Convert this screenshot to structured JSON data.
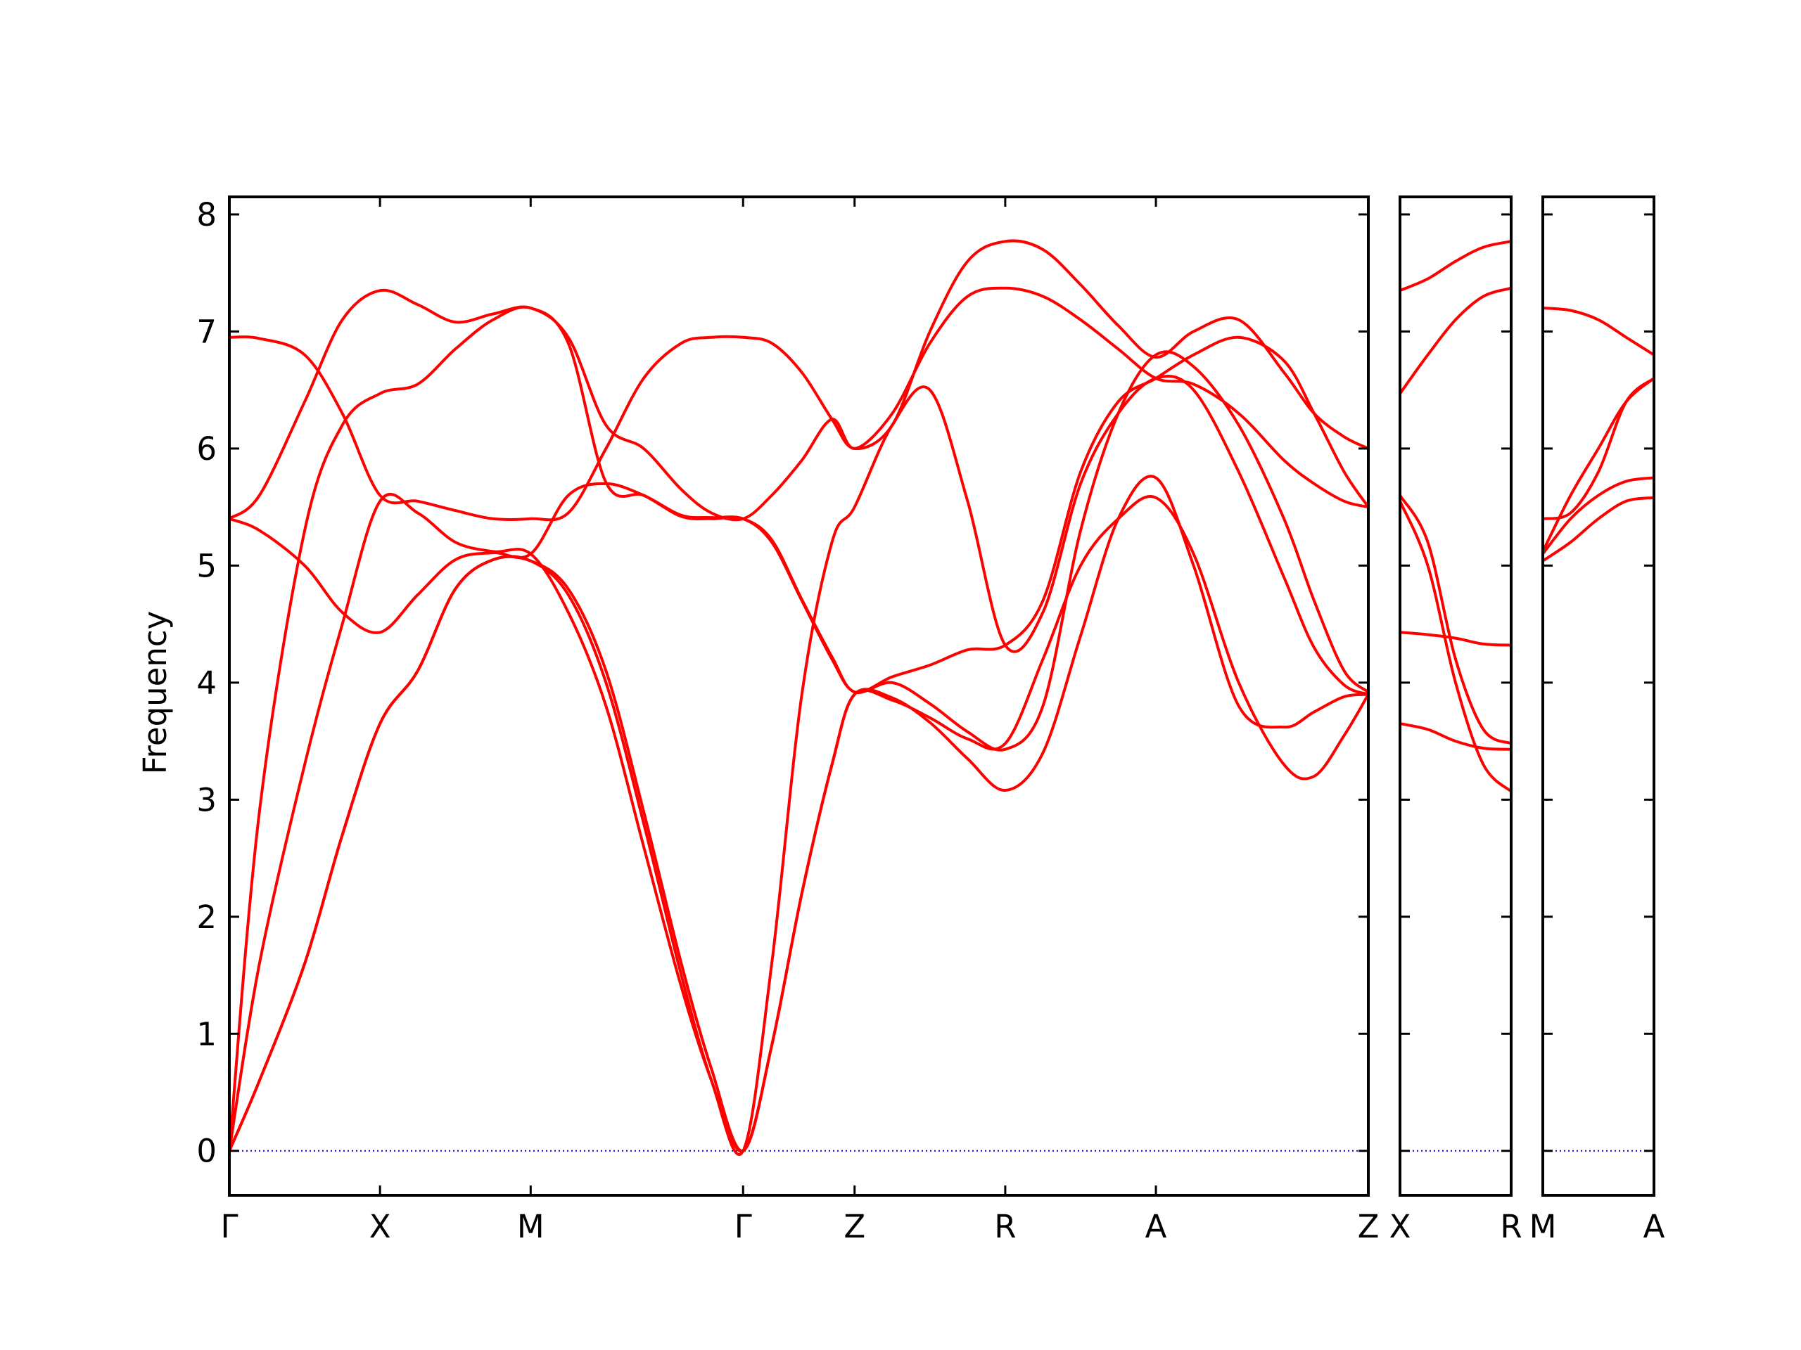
{
  "chart_data": {
    "type": "line",
    "ylabel": "Frequency",
    "ylim": [
      -0.38,
      8.15
    ],
    "yticks": [
      "0",
      "1",
      "2",
      "3",
      "4",
      "5",
      "6",
      "7",
      "8"
    ],
    "band_color": "#ff0000",
    "zero_line_color": "#0000cc",
    "panels": [
      {
        "xlabels": [
          "Γ",
          "X",
          "M",
          "Γ",
          "Z",
          "R",
          "A",
          "Z"
        ],
        "xpos": [
          0.0,
          1.0,
          2.0,
          3.41,
          4.15,
          5.15,
          6.15,
          7.56
        ],
        "series": [
          {
            "x": [
              0,
              0.2,
              0.5,
              0.75,
              1.0,
              1.25,
              1.5,
              1.75,
              2.0,
              2.25,
              2.5,
              2.75,
              3.0,
              3.2,
              3.41,
              3.6,
              3.8,
              4.0,
              4.15,
              4.4,
              4.65,
              4.9,
              5.15,
              5.4,
              5.65,
              5.9,
              6.15,
              6.4,
              6.7,
              7.0,
              7.2,
              7.4,
              7.56
            ],
            "y": [
              0,
              0.6,
              1.6,
              2.7,
              3.65,
              4.1,
              4.8,
              5.05,
              5.04,
              4.75,
              4.0,
              2.8,
              1.5,
              0.6,
              0,
              0.9,
              2.2,
              3.3,
              3.9,
              3.85,
              3.7,
              3.52,
              3.48,
              4.2,
              5.0,
              5.4,
              5.58,
              5.1,
              4.0,
              3.3,
              3.2,
              3.55,
              3.9
            ]
          },
          {
            "x": [
              0,
              0.2,
              0.5,
              0.75,
              1.0,
              1.25,
              1.5,
              1.75,
              2.0,
              2.25,
              2.5,
              2.75,
              3.0,
              3.2,
              3.41,
              3.6,
              3.8,
              4.0,
              4.15,
              4.4,
              4.65,
              4.9,
              5.15,
              5.4,
              5.65,
              5.9,
              6.15,
              6.4,
              6.7,
              7.0,
              7.2,
              7.4,
              7.56
            ],
            "y": [
              0,
              0.6,
              1.6,
              2.7,
              3.65,
              4.1,
              4.8,
              5.05,
              5.04,
              4.8,
              4.1,
              2.9,
              1.6,
              0.7,
              0,
              0.9,
              2.2,
              3.3,
              3.9,
              3.87,
              3.66,
              3.35,
              3.08,
              3.4,
              4.4,
              5.4,
              5.75,
              5.0,
              3.8,
              3.62,
              3.75,
              3.88,
              3.9
            ]
          },
          {
            "x": [
              0,
              0.2,
              0.5,
              0.75,
              1.0,
              1.25,
              1.5,
              1.75,
              2.0,
              2.25,
              2.5,
              2.75,
              3.0,
              3.2,
              3.41,
              3.6,
              3.8,
              4.0,
              4.15,
              4.4,
              4.65,
              4.9,
              5.15,
              5.4,
              5.65,
              5.9,
              6.15,
              6.4,
              6.7,
              7.0,
              7.2,
              7.4,
              7.56
            ],
            "y": [
              0,
              1.6,
              3.3,
              4.5,
              5.55,
              5.45,
              5.2,
              5.12,
              5.1,
              4.6,
              3.8,
              2.6,
              1.4,
              0.6,
              0,
              1.6,
              3.9,
              5.2,
              5.5,
              6.2,
              6.5,
              5.55,
              4.32,
              4.6,
              5.7,
              6.3,
              6.6,
              6.5,
              5.8,
              4.9,
              4.3,
              3.98,
              3.9
            ]
          },
          {
            "x": [
              0,
              0.2,
              0.5,
              0.75,
              1.0,
              1.25,
              1.5,
              1.75,
              2.0,
              2.25,
              2.5,
              2.75,
              3.0,
              3.2,
              3.41,
              3.6,
              3.8,
              4.0,
              4.15,
              4.4,
              4.65,
              4.9,
              5.15,
              5.4,
              5.65,
              5.9,
              6.15,
              6.4,
              6.7,
              7.0,
              7.2,
              7.4,
              7.56
            ],
            "y": [
              0,
              2.9,
              5.3,
              6.2,
              6.47,
              6.55,
              6.85,
              7.1,
              7.2,
              6.9,
              5.71,
              5.6,
              5.42,
              5.4,
              5.4,
              5.2,
              4.7,
              4.2,
              3.92,
              4.0,
              3.82,
              3.58,
              3.43,
              3.8,
              5.3,
              6.3,
              6.8,
              6.7,
              6.2,
              5.4,
              4.7,
              4.1,
              3.92
            ]
          },
          {
            "x": [
              0,
              0.2,
              0.5,
              0.75,
              1.0,
              1.25,
              1.5,
              1.75,
              2.0,
              2.25,
              2.5,
              2.75,
              3.0,
              3.2,
              3.41,
              3.6,
              3.8,
              4.0,
              4.15,
              4.4,
              4.65,
              4.9,
              5.15,
              5.4,
              5.65,
              5.9,
              6.15,
              6.4,
              6.7,
              7.0,
              7.2,
              7.4,
              7.56
            ],
            "y": [
              5.4,
              5.3,
              5.0,
              4.6,
              4.43,
              4.75,
              5.05,
              5.11,
              5.1,
              5.6,
              5.7,
              5.6,
              5.43,
              5.41,
              5.4,
              5.22,
              4.71,
              4.22,
              3.92,
              4.05,
              4.15,
              4.28,
              4.32,
              4.7,
              5.8,
              6.4,
              6.6,
              6.8,
              6.95,
              6.75,
              6.3,
              5.8,
              5.5
            ]
          },
          {
            "x": [
              0,
              0.2,
              0.5,
              0.75,
              1.0,
              1.25,
              1.5,
              1.75,
              2.0,
              2.25,
              2.5,
              2.75,
              3.0,
              3.2,
              3.41,
              3.6,
              3.8,
              4.0,
              4.15,
              4.4,
              4.65,
              4.9,
              5.15,
              5.4,
              5.65,
              5.9,
              6.15,
              6.4,
              6.7,
              7.0,
              7.2,
              7.4,
              7.56
            ],
            "y": [
              5.4,
              5.6,
              6.4,
              7.1,
              7.35,
              7.23,
              7.08,
              7.15,
              7.2,
              6.95,
              6.2,
              6.0,
              5.65,
              5.45,
              5.4,
              5.6,
              5.9,
              6.25,
              6.0,
              6.3,
              6.9,
              7.3,
              7.37,
              7.3,
              7.1,
              6.85,
              6.6,
              6.55,
              6.3,
              5.9,
              5.7,
              5.55,
              5.5
            ]
          },
          {
            "x": [
              0,
              0.2,
              0.5,
              0.75,
              1.0,
              1.25,
              1.5,
              1.75,
              2.0,
              2.25,
              2.5,
              2.75,
              3.0,
              3.2,
              3.41,
              3.6,
              3.8,
              4.0,
              4.15,
              4.4,
              4.65,
              4.9,
              5.15,
              5.4,
              5.65,
              5.9,
              6.15,
              6.4,
              6.7,
              7.0,
              7.2,
              7.4,
              7.56
            ],
            "y": [
              6.95,
              6.94,
              6.8,
              6.3,
              5.6,
              5.55,
              5.47,
              5.4,
              5.4,
              5.45,
              6.0,
              6.6,
              6.9,
              6.95,
              6.95,
              6.9,
              6.65,
              6.25,
              6.0,
              6.2,
              7.0,
              7.6,
              7.77,
              7.7,
              7.4,
              7.05,
              6.78,
              7.0,
              7.1,
              6.65,
              6.3,
              6.1,
              6.0
            ]
          }
        ]
      },
      {
        "xlabels": [
          "X",
          "R"
        ],
        "xpos": [
          0.0,
          1.0
        ],
        "series": [
          {
            "x": [
              0,
              0.25,
              0.5,
              0.75,
              1.0
            ],
            "y": [
              3.65,
              3.6,
              3.5,
              3.44,
              3.43
            ]
          },
          {
            "x": [
              0,
              0.25,
              0.5,
              0.75,
              1.0
            ],
            "y": [
              4.43,
              4.41,
              4.38,
              4.33,
              4.32
            ]
          },
          {
            "x": [
              0,
              0.25,
              0.5,
              0.75,
              1.0
            ],
            "y": [
              5.55,
              5.0,
              4.0,
              3.3,
              3.07
            ]
          },
          {
            "x": [
              0,
              0.25,
              0.5,
              0.75,
              1.0
            ],
            "y": [
              5.6,
              5.2,
              4.2,
              3.6,
              3.48
            ]
          },
          {
            "x": [
              0,
              0.25,
              0.5,
              0.75,
              1.0
            ],
            "y": [
              6.47,
              6.8,
              7.1,
              7.3,
              7.37
            ]
          },
          {
            "x": [
              0,
              0.25,
              0.5,
              0.75,
              1.0
            ],
            "y": [
              7.35,
              7.45,
              7.6,
              7.72,
              7.77
            ]
          }
        ]
      },
      {
        "xlabels": [
          "M",
          "A"
        ],
        "xpos": [
          0.0,
          1.0
        ],
        "series": [
          {
            "x": [
              0,
              0.25,
              0.5,
              0.75,
              1.0
            ],
            "y": [
              5.04,
              5.2,
              5.4,
              5.55,
              5.58
            ]
          },
          {
            "x": [
              0,
              0.25,
              0.5,
              0.75,
              1.0
            ],
            "y": [
              5.1,
              5.4,
              5.6,
              5.72,
              5.75
            ]
          },
          {
            "x": [
              0,
              0.25,
              0.5,
              0.75,
              1.0
            ],
            "y": [
              5.12,
              5.6,
              6.0,
              6.4,
              6.6
            ]
          },
          {
            "x": [
              0,
              0.25,
              0.5,
              0.75,
              1.0
            ],
            "y": [
              5.4,
              5.45,
              5.8,
              6.4,
              6.6
            ]
          },
          {
            "x": [
              0,
              0.25,
              0.5,
              0.75,
              1.0
            ],
            "y": [
              7.2,
              7.18,
              7.1,
              6.95,
              6.8
            ]
          }
        ]
      }
    ]
  }
}
